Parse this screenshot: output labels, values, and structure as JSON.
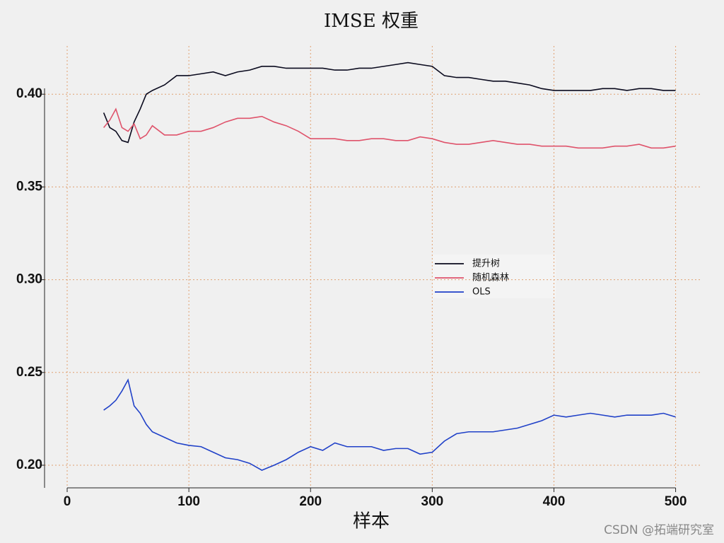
{
  "chart_data": {
    "type": "line",
    "title": "IMSE 权重",
    "x_label": "样本",
    "watermark": "CSDN @拓端研究室",
    "x": [
      30,
      35,
      40,
      45,
      50,
      55,
      60,
      65,
      70,
      80,
      90,
      100,
      110,
      120,
      130,
      140,
      150,
      160,
      170,
      180,
      190,
      200,
      210,
      220,
      230,
      240,
      250,
      260,
      270,
      280,
      290,
      300,
      310,
      320,
      330,
      340,
      350,
      360,
      370,
      380,
      390,
      400,
      410,
      420,
      430,
      440,
      450,
      460,
      470,
      480,
      490,
      500
    ],
    "series": [
      {
        "name": "提升树",
        "color": "#0a0a1e",
        "values": [
          0.39,
          0.382,
          0.38,
          0.375,
          0.374,
          0.385,
          0.392,
          0.4,
          0.402,
          0.405,
          0.41,
          0.41,
          0.411,
          0.412,
          0.41,
          0.412,
          0.413,
          0.415,
          0.415,
          0.414,
          0.414,
          0.414,
          0.414,
          0.413,
          0.413,
          0.414,
          0.414,
          0.415,
          0.416,
          0.417,
          0.416,
          0.415,
          0.41,
          0.409,
          0.409,
          0.408,
          0.407,
          0.407,
          0.406,
          0.405,
          0.403,
          0.402,
          0.402,
          0.402,
          0.402,
          0.403,
          0.403,
          0.402,
          0.403,
          0.403,
          0.402,
          0.402
        ]
      },
      {
        "name": "随机森林",
        "color": "#df536b",
        "values": [
          0.382,
          0.386,
          0.392,
          0.382,
          0.38,
          0.384,
          0.376,
          0.378,
          0.383,
          0.378,
          0.378,
          0.38,
          0.38,
          0.382,
          0.385,
          0.387,
          0.387,
          0.388,
          0.385,
          0.383,
          0.38,
          0.376,
          0.376,
          0.376,
          0.375,
          0.375,
          0.376,
          0.376,
          0.375,
          0.375,
          0.377,
          0.376,
          0.374,
          0.373,
          0.373,
          0.374,
          0.375,
          0.374,
          0.373,
          0.373,
          0.372,
          0.372,
          0.372,
          0.371,
          0.371,
          0.371,
          0.372,
          0.372,
          0.373,
          0.371,
          0.371,
          0.372
        ]
      },
      {
        "name": "OLS",
        "color": "#2041c8",
        "values": [
          0.2297,
          0.232,
          0.235,
          0.24,
          0.246,
          0.232,
          0.228,
          0.222,
          0.218,
          0.215,
          0.212,
          0.2107,
          0.21,
          0.207,
          0.204,
          0.203,
          0.201,
          0.1973,
          0.2,
          0.203,
          0.207,
          0.21,
          0.208,
          0.212,
          0.21,
          0.21,
          0.21,
          0.208,
          0.209,
          0.209,
          0.206,
          0.207,
          0.213,
          0.217,
          0.218,
          0.218,
          0.218,
          0.219,
          0.22,
          0.222,
          0.224,
          0.227,
          0.226,
          0.227,
          0.228,
          0.227,
          0.226,
          0.227,
          0.227,
          0.227,
          0.228,
          0.226
        ]
      }
    ],
    "xlim": [
      -18.6,
      520
    ],
    "ylim": [
      0.1878,
      0.426
    ],
    "xticks": [
      0,
      100,
      200,
      300,
      400,
      500
    ],
    "yticks": [
      {
        "value": 0.2,
        "label": "0.20"
      },
      {
        "value": 0.25,
        "label": "0.25"
      },
      {
        "value": 0.3,
        "label": "0.30"
      },
      {
        "value": 0.35,
        "label": "0.35"
      },
      {
        "value": 0.4,
        "label": "0.40"
      }
    ],
    "grid": true
  }
}
